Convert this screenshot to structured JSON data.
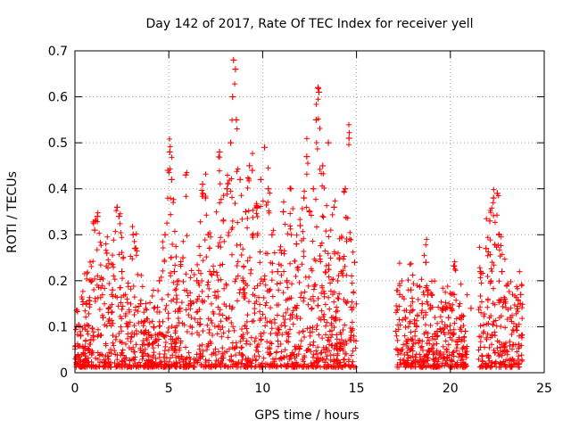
{
  "chart_data": {
    "type": "scatter",
    "title": "Day 142 of 2017, Rate Of TEC Index for receiver yell",
    "xlabel": "GPS time / hours",
    "ylabel": "ROTI / TECUs",
    "xlim": [
      0,
      25
    ],
    "ylim": [
      0,
      0.7
    ],
    "xticks": [
      "0",
      "5",
      "10",
      "15",
      "20",
      "25"
    ],
    "yticks": [
      "0",
      "0.1",
      "0.2",
      "0.3",
      "0.4",
      "0.5",
      "0.6",
      "0.7"
    ],
    "grid": true,
    "marker": "+",
    "series": [
      {
        "name": "ROTI",
        "color": "#ff0000",
        "x": [
          0.05,
          0.3,
          0.6,
          0.9,
          1.05,
          1.2,
          1.5,
          1.7,
          2.0,
          2.25,
          2.35,
          2.5,
          2.8,
          3.1,
          3.2,
          3.5,
          3.9,
          4.2,
          4.5,
          4.8,
          4.95,
          5.05,
          5.15,
          5.3,
          5.6,
          5.75,
          5.9,
          6.2,
          6.5,
          6.8,
          6.95,
          7.1,
          7.4,
          7.7,
          7.9,
          8.1,
          8.3,
          8.4,
          8.45,
          8.55,
          8.6,
          8.8,
          9.1,
          9.3,
          9.45,
          9.7,
          9.9,
          10.1,
          10.3,
          10.5,
          10.8,
          11.1,
          11.3,
          11.5,
          11.8,
          12.0,
          12.2,
          12.35,
          12.5,
          12.7,
          12.85,
          12.95,
          13.0,
          13.2,
          13.5,
          13.8,
          14.1,
          14.4,
          14.6,
          14.9,
          17.1,
          17.3,
          17.6,
          17.9,
          18.2,
          18.5,
          18.7,
          19.0,
          19.3,
          19.6,
          19.9,
          20.2,
          20.5,
          20.8,
          21.1,
          21.6,
          21.9,
          22.1,
          22.3,
          22.5,
          22.6,
          22.75,
          22.9,
          23.2,
          23.5,
          23.75
        ],
        "y": [
          0.03,
          0.08,
          0.15,
          0.2,
          0.31,
          0.34,
          0.12,
          0.26,
          0.18,
          0.36,
          0.34,
          0.22,
          0.1,
          0.3,
          0.27,
          0.15,
          0.06,
          0.1,
          0.2,
          0.3,
          0.44,
          0.48,
          0.42,
          0.22,
          0.14,
          0.25,
          0.43,
          0.15,
          0.2,
          0.41,
          0.38,
          0.3,
          0.22,
          0.48,
          0.33,
          0.4,
          0.5,
          0.6,
          0.68,
          0.66,
          0.55,
          0.42,
          0.35,
          0.45,
          0.44,
          0.36,
          0.42,
          0.49,
          0.4,
          0.3,
          0.22,
          0.35,
          0.2,
          0.4,
          0.28,
          0.32,
          0.38,
          0.47,
          0.35,
          0.4,
          0.55,
          0.62,
          0.61,
          0.45,
          0.5,
          0.36,
          0.25,
          0.4,
          0.51,
          0.24,
          0.09,
          0.17,
          0.12,
          0.18,
          0.1,
          0.15,
          0.24,
          0.17,
          0.09,
          0.14,
          0.12,
          0.17,
          0.12,
          0.09,
          0.14,
          0.22,
          0.27,
          0.33,
          0.38,
          0.39,
          0.3,
          0.22,
          0.16,
          0.12,
          0.1,
          0.17
        ]
      }
    ]
  }
}
